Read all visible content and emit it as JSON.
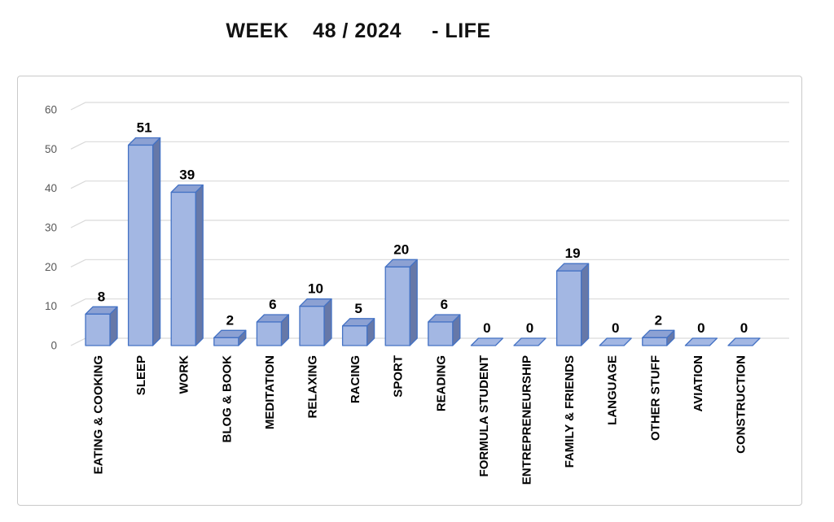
{
  "chart_data": {
    "type": "bar",
    "style": "3d-column",
    "title": "WEEK    48 / 2024     - LIFE",
    "categories": [
      "EATING & COOKING",
      "SLEEP",
      "WORK",
      "BLOG & BOOK",
      "MEDITATION",
      "RELAXING",
      "RACING",
      "SPORT",
      "READING",
      "FORMULA STUDENT",
      "ENTREPRENEURSHIP",
      "FAMILY & FRIENDS",
      "LANGUAGE",
      "OTHER STUFF",
      "AVIATION",
      "CONSTRUCTION"
    ],
    "values": [
      8,
      51,
      39,
      2,
      6,
      10,
      5,
      20,
      6,
      0,
      0,
      19,
      0,
      2,
      0,
      0
    ],
    "xlabel": "",
    "ylabel": "",
    "ylim": [
      0,
      60
    ],
    "y_ticks": [
      0,
      10,
      20,
      30,
      40,
      50,
      60
    ],
    "grid": true,
    "legend": false,
    "data_labels": true,
    "colors": {
      "bar_front": "#a3b7e3",
      "bar_side": "#6678a8",
      "bar_top": "#8ca1d3",
      "bar_border": "#4472c4",
      "gridline": "#d9d9d9",
      "tick_label": "#595959",
      "data_label": "#000000",
      "title": "#111111",
      "chart_border": "#c9c9c9",
      "background": "#ffffff"
    }
  }
}
